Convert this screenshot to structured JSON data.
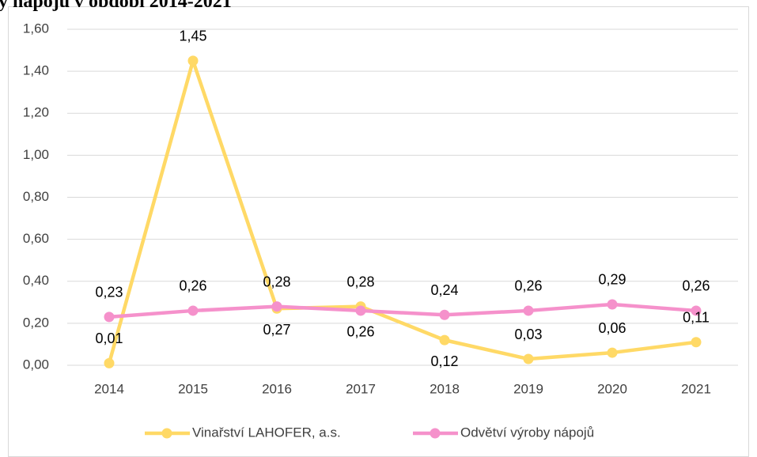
{
  "chart_data": {
    "type": "line",
    "title": "y nápojů v období 2014-2021",
    "categories": [
      "2014",
      "2015",
      "2016",
      "2017",
      "2018",
      "2019",
      "2020",
      "2021"
    ],
    "series": [
      {
        "name": "Vinařství LAHOFER, a.s.",
        "color": "#ffd966",
        "values": [
          0.01,
          1.45,
          0.27,
          0.28,
          0.12,
          0.03,
          0.06,
          0.11
        ],
        "value_labels": [
          "0,01",
          "1,45",
          "0,27",
          "0,28",
          "0,12",
          "0,03",
          "0,06",
          "0,11"
        ]
      },
      {
        "name": "Odvětví výroby nápojů",
        "color": "#f591cb",
        "values": [
          0.23,
          0.26,
          0.28,
          0.26,
          0.24,
          0.26,
          0.29,
          0.26
        ],
        "value_labels": [
          "0,23",
          "0,26",
          "0,28",
          "0,26",
          "0,24",
          "0,26",
          "0,29",
          "0,26"
        ]
      }
    ],
    "ylim": [
      0,
      1.6
    ],
    "yticks": [
      {
        "value": 0,
        "label": "0,00"
      },
      {
        "value": 0.2,
        "label": "0,20"
      },
      {
        "value": 0.4,
        "label": "0,40"
      },
      {
        "value": 0.6,
        "label": "0,60"
      },
      {
        "value": 0.8,
        "label": "0,80"
      },
      {
        "value": 1.0,
        "label": "1,00"
      },
      {
        "value": 1.2,
        "label": "1,20"
      },
      {
        "value": 1.4,
        "label": "1,40"
      },
      {
        "value": 1.6,
        "label": "1,60"
      }
    ],
    "grid": true,
    "legend": "bottom"
  }
}
